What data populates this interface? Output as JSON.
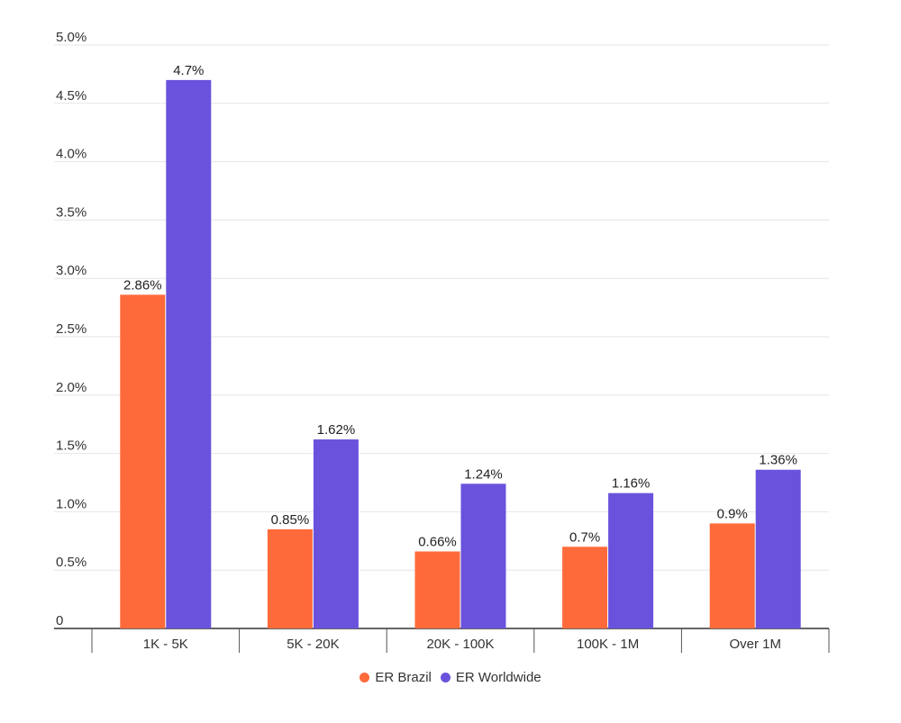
{
  "chart_data": {
    "type": "bar",
    "categories": [
      "1K - 5K",
      "5K - 20K",
      "20K - 100K",
      "100K - 1M",
      "Over 1M"
    ],
    "series": [
      {
        "name": "ER Brazil",
        "values": [
          2.86,
          0.85,
          0.66,
          0.7,
          0.9
        ],
        "labels": [
          "2.86%",
          "0.85%",
          "0.66%",
          "0.7%",
          "0.9%"
        ],
        "color": "#ff6a3a"
      },
      {
        "name": "ER Worldwide",
        "values": [
          4.7,
          1.62,
          1.24,
          1.16,
          1.36
        ],
        "labels": [
          "4.7%",
          "1.62%",
          "1.24%",
          "1.16%",
          "1.36%"
        ],
        "color": "#6b52dc"
      }
    ],
    "y_ticks": [
      0,
      0.5,
      1.0,
      1.5,
      2.0,
      2.5,
      3.0,
      3.5,
      4.0,
      4.5,
      5.0
    ],
    "y_tick_labels": [
      "0",
      "0.5%",
      "1.0%",
      "1.5%",
      "2.0%",
      "2.5%",
      "3.0%",
      "3.5%",
      "4.0%",
      "4.5%",
      "5.0%"
    ],
    "ylim": [
      0,
      5.0
    ],
    "grid": true,
    "legend_position": "bottom-center"
  }
}
